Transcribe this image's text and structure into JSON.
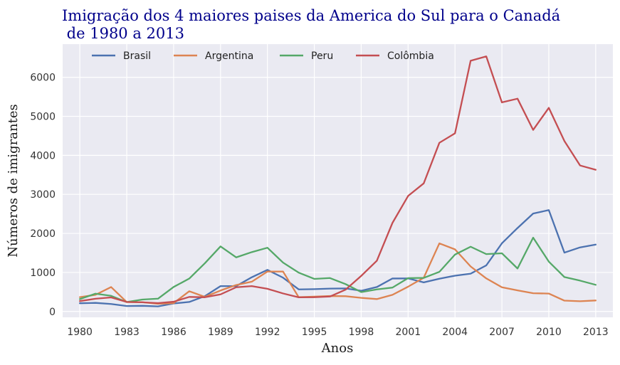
{
  "chart_data": {
    "type": "line",
    "title_line1": "Imigração dos 4 maiores paises da America do Sul para o Canadá",
    "title_line2": " de 1980 a 2013",
    "xlabel": "Anos",
    "ylabel": "Números de imigrantes",
    "xlim": [
      1978.9,
      2014.1
    ],
    "ylim": [
      -150,
      6850
    ],
    "x_ticks": [
      1980,
      1983,
      1986,
      1989,
      1992,
      1995,
      1998,
      2001,
      2004,
      2007,
      2010,
      2013
    ],
    "y_ticks": [
      0,
      1000,
      2000,
      3000,
      4000,
      5000,
      6000
    ],
    "grid": true,
    "legend_position": "top",
    "background": "#eaeaf2",
    "x": [
      1980,
      1981,
      1982,
      1983,
      1984,
      1985,
      1986,
      1987,
      1988,
      1989,
      1990,
      1991,
      1992,
      1993,
      1994,
      1995,
      1996,
      1997,
      1998,
      1999,
      2000,
      2001,
      2002,
      2003,
      2004,
      2005,
      2006,
      2007,
      2008,
      2009,
      2010,
      2011,
      2012,
      2013
    ],
    "series": [
      {
        "name": "Brasil",
        "color": "#4c72b0",
        "values": [
          211,
          220,
          192,
          139,
          145,
          130,
          205,
          244,
          394,
          650,
          650,
          877,
          1066,
          866,
          566,
          572,
          586,
          591,
          531,
          626,
          845,
          847,
          745,
          839,
          917,
          969,
          1181,
          1746,
          2138,
          2509,
          2598,
          1508,
          1642,
          1714
        ]
      },
      {
        "name": "Argentina",
        "color": "#dd8452",
        "values": [
          368,
          426,
          626,
          241,
          237,
          196,
          213,
          519,
          374,
          538,
          678,
          763,
          1023,
          1022,
          366,
          380,
          396,
          391,
          349,
          318,
          427,
          635,
          865,
          1745,
          1591,
          1153,
          847,
          620,
          540,
          467,
          459,
          278,
          263,
          282
        ]
      },
      {
        "name": "Peru",
        "color": "#55a868",
        "values": [
          317,
          456,
          401,
          241,
          306,
          328,
          628,
          843,
          1237,
          1667,
          1386,
          1521,
          1633,
          1252,
          995,
          835,
          857,
          701,
          497,
          565,
          612,
          855,
          861,
          1015,
          1458,
          1659,
          1470,
          1491,
          1101,
          1891,
          1278,
          882,
          790,
          683
        ]
      },
      {
        "name": "Colômbia",
        "color": "#c44e52",
        "values": [
          266,
          326,
          360,
          244,
          235,
          214,
          250,
          373,
          364,
          438,
          620,
          650,
          581,
          462,
          363,
          365,
          383,
          559,
          912,
          1301,
          2270,
          2960,
          3283,
          4322,
          4565,
          6424,
          6535,
          5357,
          5452,
          4652,
          5218,
          4366,
          3741,
          3631
        ]
      }
    ]
  }
}
